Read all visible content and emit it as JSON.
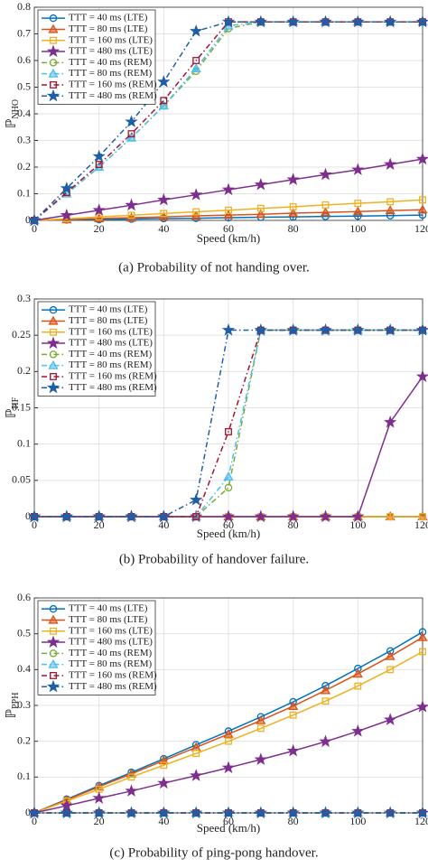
{
  "chart_data": [
    {
      "type": "line",
      "xlabel": "Speed (km/h)",
      "ylabel": "ℙ",
      "ylabel_subscript": "NHO",
      "caption": "(a) Probability of not handing over.",
      "x": [
        0,
        10,
        20,
        30,
        40,
        50,
        60,
        70,
        80,
        90,
        100,
        110,
        120
      ],
      "xlim": [
        0,
        120
      ],
      "xticks": [
        0,
        20,
        40,
        60,
        80,
        100,
        120
      ],
      "ylim": [
        0,
        0.8
      ],
      "yticks": [
        0,
        0.1,
        0.2,
        0.3,
        0.4,
        0.5,
        0.6,
        0.7,
        0.8
      ],
      "grid": true,
      "legend": "upper-left",
      "series": [
        {
          "name": "TTT = 40 ms (LTE)",
          "color": "#0072BD",
          "marker": "circle",
          "linestyle": "solid",
          "values": [
            0,
            0.002,
            0.003,
            0.005,
            0.007,
            0.008,
            0.01,
            0.012,
            0.013,
            0.015,
            0.016,
            0.018,
            0.02
          ]
        },
        {
          "name": "TTT = 80 ms (LTE)",
          "color": "#D95319",
          "marker": "triangle",
          "linestyle": "solid",
          "values": [
            0,
            0.003,
            0.007,
            0.01,
            0.013,
            0.017,
            0.02,
            0.023,
            0.027,
            0.03,
            0.033,
            0.037,
            0.04
          ]
        },
        {
          "name": "TTT = 160 ms (LTE)",
          "color": "#EDB120",
          "marker": "square",
          "linestyle": "solid",
          "values": [
            0,
            0.006,
            0.013,
            0.019,
            0.026,
            0.032,
            0.038,
            0.045,
            0.051,
            0.058,
            0.064,
            0.07,
            0.077
          ]
        },
        {
          "name": "TTT = 480 ms (LTE)",
          "color": "#7E2F8E",
          "marker": "star",
          "linestyle": "solid",
          "values": [
            0,
            0.019,
            0.038,
            0.057,
            0.077,
            0.096,
            0.115,
            0.134,
            0.153,
            0.172,
            0.19,
            0.21,
            0.23
          ]
        },
        {
          "name": "TTT = 40 ms (REM)",
          "color": "#77AC30",
          "marker": "circle",
          "linestyle": "dashdot",
          "values": [
            0,
            0.1,
            0.2,
            0.31,
            0.43,
            0.56,
            0.72,
            0.745,
            0.745,
            0.745,
            0.745,
            0.745,
            0.745
          ]
        },
        {
          "name": "TTT = 80 ms (REM)",
          "color": "#4DBEEE",
          "marker": "triangle",
          "linestyle": "dashdot",
          "values": [
            0,
            0.1,
            0.2,
            0.31,
            0.43,
            0.57,
            0.73,
            0.745,
            0.745,
            0.745,
            0.745,
            0.745,
            0.745
          ]
        },
        {
          "name": "TTT = 160 ms (REM)",
          "color": "#A2142F",
          "marker": "square",
          "linestyle": "dashdot",
          "values": [
            0,
            0.105,
            0.21,
            0.325,
            0.45,
            0.6,
            0.745,
            0.745,
            0.745,
            0.745,
            0.745,
            0.745,
            0.745
          ]
        },
        {
          "name": "TTT = 480 ms (REM)",
          "color": "#1F5FA8",
          "marker": "star",
          "linestyle": "dashdot",
          "values": [
            0,
            0.12,
            0.24,
            0.37,
            0.52,
            0.71,
            0.745,
            0.745,
            0.745,
            0.745,
            0.745,
            0.745,
            0.745
          ]
        }
      ]
    },
    {
      "type": "line",
      "xlabel": "Speed (km/h)",
      "ylabel": "ℙ",
      "ylabel_subscript": "HF",
      "caption": "(b) Probability of handover failure.",
      "x": [
        0,
        10,
        20,
        30,
        40,
        50,
        60,
        70,
        80,
        90,
        100,
        110,
        120
      ],
      "xlim": [
        0,
        120
      ],
      "xticks": [
        0,
        20,
        40,
        60,
        80,
        100,
        120
      ],
      "ylim": [
        0,
        0.3
      ],
      "yticks": [
        0,
        0.05,
        0.1,
        0.15,
        0.2,
        0.25,
        0.3
      ],
      "grid": true,
      "legend": "upper-left",
      "series": [
        {
          "name": "TTT = 40 ms (LTE)",
          "color": "#0072BD",
          "marker": "circle",
          "linestyle": "solid",
          "values": [
            0,
            0,
            0,
            0,
            0,
            0,
            0,
            0,
            0,
            0,
            0,
            0,
            0
          ]
        },
        {
          "name": "TTT = 80 ms (LTE)",
          "color": "#D95319",
          "marker": "triangle",
          "linestyle": "solid",
          "values": [
            0,
            0,
            0,
            0,
            0,
            0,
            0,
            0,
            0,
            0,
            0,
            0,
            0
          ]
        },
        {
          "name": "TTT = 160 ms (LTE)",
          "color": "#EDB120",
          "marker": "square",
          "linestyle": "solid",
          "values": [
            0,
            0,
            0,
            0,
            0,
            0,
            0,
            0,
            0,
            0,
            0,
            0,
            0
          ]
        },
        {
          "name": "TTT = 480 ms (LTE)",
          "color": "#7E2F8E",
          "marker": "star",
          "linestyle": "solid",
          "values": [
            0,
            0,
            0,
            0,
            0,
            0,
            0,
            0,
            0,
            0,
            0,
            0.13,
            0.193
          ]
        },
        {
          "name": "TTT = 40 ms (REM)",
          "color": "#77AC30",
          "marker": "circle",
          "linestyle": "dashdot",
          "values": [
            0,
            0,
            0,
            0,
            0,
            0,
            0.04,
            0.257,
            0.257,
            0.257,
            0.257,
            0.257,
            0.257
          ]
        },
        {
          "name": "TTT = 80 ms (REM)",
          "color": "#4DBEEE",
          "marker": "triangle",
          "linestyle": "dashdot",
          "values": [
            0,
            0,
            0,
            0,
            0,
            0,
            0.055,
            0.257,
            0.257,
            0.257,
            0.257,
            0.257,
            0.257
          ]
        },
        {
          "name": "TTT = 160 ms (REM)",
          "color": "#A2142F",
          "marker": "square",
          "linestyle": "dashdot",
          "values": [
            0,
            0,
            0,
            0,
            0,
            0,
            0.117,
            0.257,
            0.257,
            0.257,
            0.257,
            0.257,
            0.257
          ]
        },
        {
          "name": "TTT = 480 ms (REM)",
          "color": "#1F5FA8",
          "marker": "star",
          "linestyle": "dashdot",
          "values": [
            0,
            0,
            0,
            0,
            0,
            0.023,
            0.257,
            0.257,
            0.257,
            0.257,
            0.257,
            0.257,
            0.257
          ]
        }
      ]
    },
    {
      "type": "line",
      "xlabel": "Speed (km/h)",
      "ylabel": "ℙ",
      "ylabel_subscript": "PPH",
      "caption": "(c) Probability of ping-pong handover.",
      "x": [
        0,
        10,
        20,
        30,
        40,
        50,
        60,
        70,
        80,
        90,
        100,
        110,
        120
      ],
      "xlim": [
        0,
        120
      ],
      "xticks": [
        0,
        20,
        40,
        60,
        80,
        100,
        120
      ],
      "ylim": [
        0,
        0.6
      ],
      "yticks": [
        0,
        0.1,
        0.2,
        0.3,
        0.4,
        0.5,
        0.6
      ],
      "grid": true,
      "legend": "upper-left",
      "series": [
        {
          "name": "TTT = 40 ms (LTE)",
          "color": "#0072BD",
          "marker": "circle",
          "linestyle": "solid",
          "values": [
            0,
            0.038,
            0.076,
            0.113,
            0.151,
            0.19,
            0.228,
            0.268,
            0.31,
            0.355,
            0.403,
            0.452,
            0.505
          ]
        },
        {
          "name": "TTT = 80 ms (LTE)",
          "color": "#D95319",
          "marker": "triangle",
          "linestyle": "solid",
          "values": [
            0,
            0.036,
            0.073,
            0.109,
            0.146,
            0.183,
            0.22,
            0.258,
            0.298,
            0.342,
            0.388,
            0.437,
            0.49
          ]
        },
        {
          "name": "TTT = 160 ms (LTE)",
          "color": "#EDB120",
          "marker": "square",
          "linestyle": "solid",
          "values": [
            0,
            0.033,
            0.066,
            0.1,
            0.133,
            0.166,
            0.2,
            0.236,
            0.273,
            0.312,
            0.354,
            0.4,
            0.45
          ]
        },
        {
          "name": "TTT = 480 ms (LTE)",
          "color": "#7E2F8E",
          "marker": "star",
          "linestyle": "solid",
          "values": [
            0,
            0.02,
            0.041,
            0.061,
            0.083,
            0.104,
            0.126,
            0.149,
            0.173,
            0.199,
            0.228,
            0.26,
            0.296
          ]
        },
        {
          "name": "TTT = 40 ms (REM)",
          "color": "#77AC30",
          "marker": "circle",
          "linestyle": "dashdot",
          "values": [
            0,
            0,
            0,
            0,
            0,
            0,
            0,
            0,
            0,
            0,
            0,
            0,
            0
          ]
        },
        {
          "name": "TTT = 80 ms (REM)",
          "color": "#4DBEEE",
          "marker": "triangle",
          "linestyle": "dashdot",
          "values": [
            0,
            0,
            0,
            0,
            0,
            0,
            0,
            0,
            0,
            0,
            0,
            0,
            0
          ]
        },
        {
          "name": "TTT = 160 ms (REM)",
          "color": "#A2142F",
          "marker": "square",
          "linestyle": "dashdot",
          "values": [
            0,
            0,
            0,
            0,
            0,
            0,
            0,
            0,
            0,
            0,
            0,
            0,
            0
          ]
        },
        {
          "name": "TTT = 480 ms (REM)",
          "color": "#1F5FA8",
          "marker": "star",
          "linestyle": "dashdot",
          "values": [
            0,
            0,
            0,
            0,
            0,
            0,
            0,
            0,
            0,
            0,
            0,
            0,
            0
          ]
        }
      ]
    }
  ]
}
